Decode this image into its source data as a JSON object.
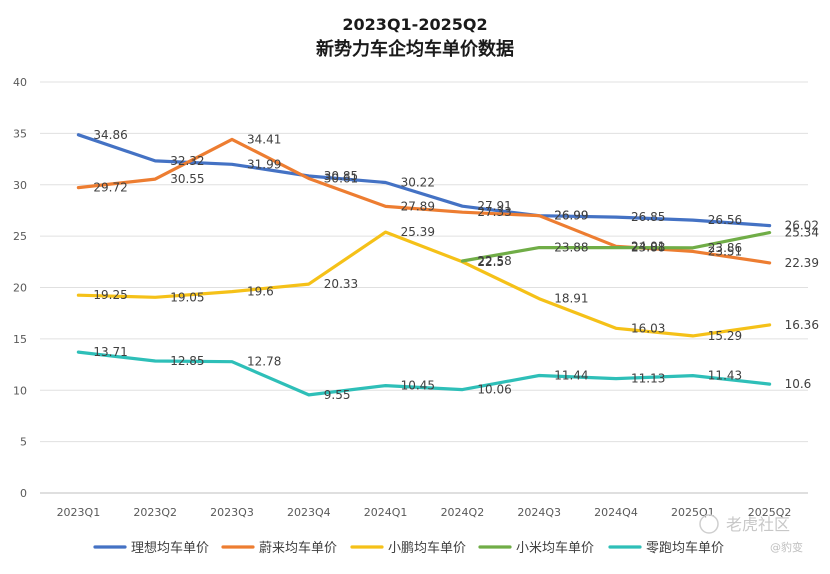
{
  "chart_data": {
    "type": "line",
    "title_line1": "2023Q1-2025Q2",
    "title_line2": "新势力车企均车单价数据",
    "categories": [
      "2023Q1",
      "2023Q2",
      "2023Q3",
      "2023Q4",
      "2024Q1",
      "2024Q2",
      "2024Q3",
      "2024Q4",
      "2025Q1",
      "2025Q2"
    ],
    "ylim": [
      0,
      40
    ],
    "yticks": [
      "0",
      "5",
      "10",
      "15",
      "20",
      "25",
      "30",
      "35",
      "40"
    ],
    "grid": "horizontal",
    "legend_position": "bottom",
    "series": [
      {
        "name": "理想均车单价",
        "color": "#4472C4",
        "values": [
          34.86,
          32.32,
          31.99,
          30.85,
          30.22,
          27.91,
          26.99,
          26.85,
          26.56,
          26.02
        ],
        "labels": [
          "34.86",
          "32.32",
          "31.99",
          "30.85",
          "30.22",
          "27.91",
          "26.99",
          "26.85",
          "26.56",
          "26.02"
        ]
      },
      {
        "name": "蔚来均车单价",
        "color": "#ED7D31",
        "values": [
          29.72,
          30.55,
          34.41,
          30.61,
          27.89,
          27.33,
          26.99,
          24.01,
          23.51,
          22.39
        ],
        "labels": [
          "29.72",
          "30.55",
          "34.41",
          "30.61",
          "27.89",
          "27.33",
          "26.99",
          "24.01",
          "23.51",
          "22.39"
        ]
      },
      {
        "name": "小鹏均车单价",
        "color": "#F5C118",
        "values": [
          19.25,
          19.05,
          19.6,
          20.33,
          25.39,
          22.5,
          18.91,
          16.03,
          15.29,
          16.36
        ],
        "labels": [
          "19.25",
          "19.05",
          "19.6",
          "20.33",
          "25.39",
          "22.5",
          "18.91",
          "16.03",
          "15.29",
          "16.36"
        ]
      },
      {
        "name": "小米均车单价",
        "color": "#70AD47",
        "values": [
          null,
          null,
          null,
          null,
          null,
          22.58,
          23.88,
          23.88,
          23.86,
          25.34
        ],
        "labels": [
          null,
          null,
          null,
          null,
          null,
          "22.58",
          "23.88",
          "23.88",
          "23.86",
          "25.34"
        ]
      },
      {
        "name": "零跑均车单价",
        "color": "#2EBFB8",
        "values": [
          13.71,
          12.85,
          12.78,
          9.55,
          10.45,
          10.06,
          11.44,
          11.13,
          11.43,
          10.6
        ],
        "labels": [
          "13.71",
          "12.85",
          "12.78",
          "9.55",
          "10.45",
          "10.06",
          "11.44",
          "11.13",
          "11.43",
          "10.6"
        ]
      }
    ]
  },
  "watermark": {
    "main": "老虎社区",
    "sub": "@豹变"
  }
}
